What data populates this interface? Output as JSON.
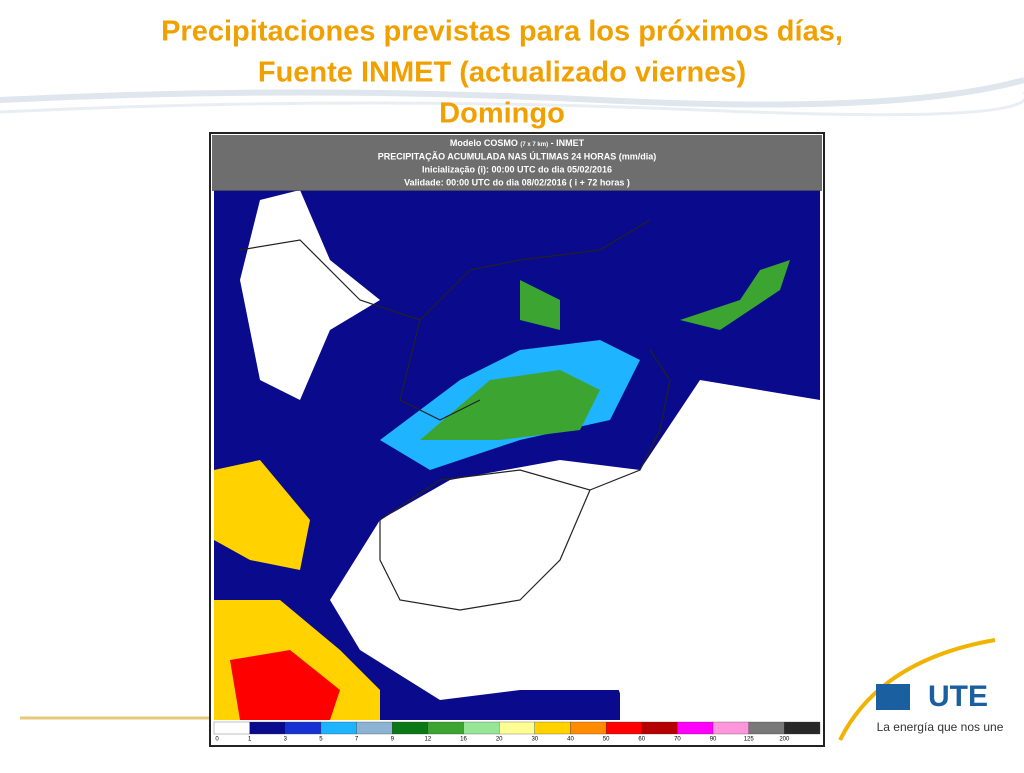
{
  "header": {
    "title_lines": [
      "Precipitaciones previstas para los próximos días,",
      "Fuente INMET (actualizado viernes)",
      "Domingo"
    ]
  },
  "map": {
    "model": "Modelo COSMO",
    "resolution": "(7 x 7 km)",
    "source": "- INMET",
    "product": "PRECIPITAÇÃO ACUMULADA NAS ÚLTIMAS 24 HORAS (mm/dia)",
    "init": "Inicialização (i): 00:00 UTC do dia 05/02/2016",
    "valid": "Validade: 00:00 UTC do dia 08/02/2016 ( i + 72 horas )",
    "colorbar": {
      "labels": [
        0,
        1,
        3,
        5,
        7,
        9,
        12,
        16,
        20,
        30,
        40,
        50,
        60,
        70,
        90,
        125,
        200
      ],
      "colors": [
        "#ffffff",
        "#0a0a8c",
        "#1432d2",
        "#1eb4ff",
        "#8cb4d2",
        "#0a7814",
        "#3ca532",
        "#96e696",
        "#ffff96",
        "#ffd200",
        "#ff8c00",
        "#ff0000",
        "#b40000",
        "#ff00ff",
        "#ff96dc",
        "#787878",
        "#282828"
      ]
    }
  },
  "logo": {
    "brand": "UTE",
    "tagline": "La energía que nos une"
  }
}
